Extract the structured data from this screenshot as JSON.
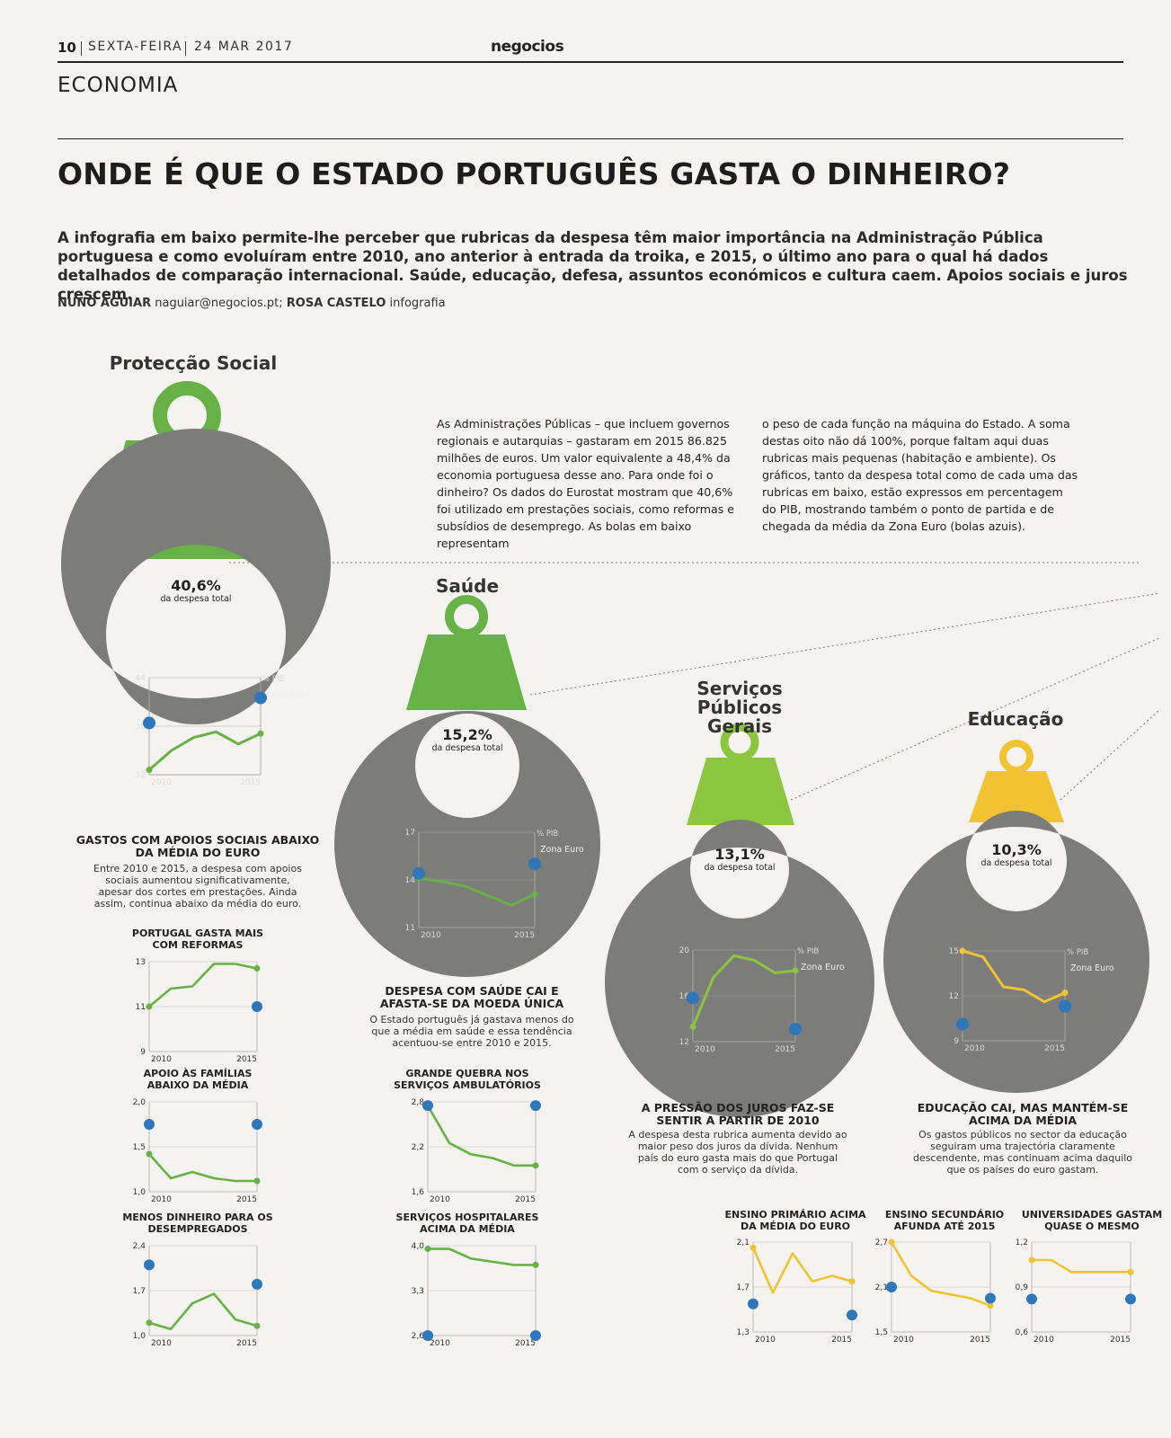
{
  "header": {
    "page_number": "10",
    "weekday": "SEXTA-FEIRA",
    "date": "24 MAR 2017",
    "brand": "negocios",
    "section": "ECONOMIA"
  },
  "article": {
    "headline": "ONDE É QUE O ESTADO PORTUGUÊS GASTA O DINHEIRO?",
    "lede": "A infografia em baixo permite-lhe perceber que rubricas da despesa têm maior importância na Administração Pública portuguesa e como evoluíram entre 2010, ano anterior à entrada da troika, e 2015, o último ano para o qual há dados detalhados de comparação internacional. Saúde, educação, defesa, assuntos económicos e cultura caem. Apoios sociais e juros crescem.",
    "author_name": "NUNO AGUIAR",
    "author_email": "naguiar@negocios.pt;",
    "designer_name": "ROSA CASTELO",
    "designer_role": "infografia",
    "intro_col1": "As Administrações Públicas – que incluem governos regionais e autarquias – gastaram em 2015 86.825 milhões de euros. Um valor equivalente a 48,4% da economia portuguesa desse ano. Para onde foi o dinheiro? Os dados do Eurostat mostram que 40,6% foi utilizado em prestações sociais, como reformas e subsídios de desemprego. As bolas em baixo representam",
    "intro_col2": "o peso de cada função na máquina do Estado. A soma destas oito não dá 100%, porque faltam aqui duas rubricas mais pequenas (habitação e ambiente). Os gráficos, tanto da despesa total como de cada uma das rubricas em baixo, estão expressos em percentagem do PIB, mostrando também o ponto de partida e de chegada da média da Zona Euro (bolas azuis)."
  },
  "labels": {
    "unit": "% PIB",
    "zona_euro": "Zona Euro",
    "da_despesa_total": "da despesa total"
  },
  "categories": {
    "proteccao": {
      "name": "Protecção Social",
      "share": "40,6%",
      "color": "#68b146",
      "title": "GASTOS COM APOIOS SOCIAIS ABAIXO DA MÉDIA DO EURO",
      "text": "Entre 2010 e 2015, a despesa com apoios sociais aumentou significativamente, apesar dos cortes em prestações. Ainda assim, continua abaixo da média do euro."
    },
    "saude": {
      "name": "Saúde",
      "share": "15,2%",
      "color": "#68b146",
      "title": "DESPESA COM SAÚDE CAI E AFASTA-SE DA MOEDA ÚNICA",
      "text": "O Estado português já gastava menos do que a média em saúde e essa tendência acentuou-se entre 2010 e 2015."
    },
    "servicos": {
      "name": "Serviços Públicos Gerais",
      "share": "13,1%",
      "color": "#8cc63f",
      "title": "A PRESSÃO DOS JUROS FAZ-SE SENTIR A PARTIR DE 2010",
      "text": "A despesa desta rubrica aumenta devido ao maior peso dos juros da dívida. Nenhum país do euro gasta mais do que Portugal com o serviço da dívida."
    },
    "educacao": {
      "name": "Educação",
      "share": "10,3%",
      "color": "#f1c232",
      "title": "EDUCAÇÃO CAI, MAS MANTÉM-SE ACIMA DA MÉDIA",
      "text": "Os gastos públicos no sector da educação seguiram uma trajectória claramente descendente, mas continuam acima daquilo que os países do euro gastam."
    }
  },
  "chart_data": [
    {
      "id": "c-prot",
      "type": "line",
      "title": "Protecção Social",
      "x": [
        2010,
        2011,
        2012,
        2013,
        2014,
        2015
      ],
      "values": [
        32.6,
        35.0,
        36.6,
        37.3,
        35.8,
        37.1
      ],
      "euro_start": 38.4,
      "euro_end": 41.5,
      "ylim": [
        32,
        44
      ],
      "yticks": [
        "44",
        "38",
        "32"
      ],
      "xticks": [
        "2010",
        "2015"
      ]
    },
    {
      "id": "c-reformas",
      "type": "line",
      "title": "PORTUGAL GASTA MAIS COM REFORMAS",
      "x": [
        2010,
        2011,
        2012,
        2013,
        2014,
        2015
      ],
      "values": [
        11.0,
        11.8,
        11.9,
        12.9,
        12.9,
        12.7
      ],
      "euro_start": null,
      "euro_end": 11.0,
      "ylim": [
        9,
        13
      ],
      "yticks": [
        "13",
        "11",
        "9"
      ],
      "xticks": [
        "2010",
        "2015"
      ]
    },
    {
      "id": "c-familias",
      "type": "line",
      "title": "APOIO ÀS FAMÍLIAS ABAIXO DA MÉDIA",
      "x": [
        2010,
        2011,
        2012,
        2013,
        2014,
        2015
      ],
      "values": [
        1.42,
        1.15,
        1.22,
        1.15,
        1.12,
        1.12
      ],
      "euro_start": 1.75,
      "euro_end": 1.75,
      "ylim": [
        1.0,
        2.0
      ],
      "yticks": [
        "2,0",
        "1,5",
        "1,0"
      ],
      "xticks": [
        "2010",
        "2015"
      ]
    },
    {
      "id": "c-desemprego",
      "type": "line",
      "title": "MENOS DINHEIRO PARA OS DESEMPREGADOS",
      "x": [
        2010,
        2011,
        2012,
        2013,
        2014,
        2015
      ],
      "values": [
        1.2,
        1.1,
        1.5,
        1.65,
        1.25,
        1.15
      ],
      "euro_start": 2.1,
      "euro_end": 1.8,
      "ylim": [
        1.0,
        2.4
      ],
      "yticks": [
        "2,4",
        "1,7",
        "1,0"
      ],
      "xticks": [
        "2010",
        "2015"
      ]
    },
    {
      "id": "c-saude",
      "type": "line",
      "title": "Saúde",
      "x": [
        2010,
        2011,
        2012,
        2013,
        2014,
        2015
      ],
      "values": [
        14.1,
        13.9,
        13.6,
        13.0,
        12.4,
        13.1
      ],
      "euro_start": 14.4,
      "euro_end": 15.0,
      "ylim": [
        11,
        17
      ],
      "yticks": [
        "17",
        "14",
        "11"
      ],
      "xticks": [
        "2010",
        "2015"
      ]
    },
    {
      "id": "c-ambulatorios",
      "type": "line",
      "title": "GRANDE QUEBRA NOS SERVIÇOS AMBULATÓRIOS",
      "x": [
        2010,
        2011,
        2012,
        2013,
        2014,
        2015
      ],
      "values": [
        2.75,
        2.25,
        2.1,
        2.05,
        1.95,
        1.95
      ],
      "euro_start": 2.75,
      "euro_end": 2.75,
      "ylim": [
        1.6,
        2.8
      ],
      "yticks": [
        "2,8",
        "2,2",
        "1,6"
      ],
      "xticks": [
        "2010",
        "2015"
      ]
    },
    {
      "id": "c-hospitalares",
      "type": "line",
      "title": "SERVIÇOS HOSPITALARES ACIMA DA MÉDIA",
      "x": [
        2010,
        2011,
        2012,
        2013,
        2014,
        2015
      ],
      "values": [
        3.95,
        3.95,
        3.8,
        3.75,
        3.7,
        3.7
      ],
      "euro_start": 2.6,
      "euro_end": 2.6,
      "ylim": [
        2.6,
        4.0
      ],
      "yticks": [
        "4,0",
        "3,3",
        "2,6"
      ],
      "xticks": [
        "2010",
        "2015"
      ]
    },
    {
      "id": "c-servicos",
      "type": "line",
      "title": "Serviços Públicos Gerais",
      "x": [
        2010,
        2011,
        2012,
        2013,
        2014,
        2015
      ],
      "values": [
        13.3,
        17.6,
        19.5,
        19.1,
        18.0,
        18.2
      ],
      "euro_start": 15.8,
      "euro_end": 13.1,
      "ylim": [
        12,
        20
      ],
      "yticks": [
        "20",
        "16",
        "12"
      ],
      "xticks": [
        "2010",
        "2015"
      ]
    },
    {
      "id": "c-educacao",
      "type": "line",
      "title": "Educação",
      "x": [
        2010,
        2011,
        2012,
        2013,
        2014,
        2015
      ],
      "values": [
        15.0,
        14.6,
        12.6,
        12.4,
        11.6,
        12.2
      ],
      "euro_start": 10.1,
      "euro_end": 11.3,
      "ylim": [
        9,
        15
      ],
      "yticks": [
        "15",
        "12",
        "9"
      ],
      "xticks": [
        "2010",
        "2015"
      ]
    },
    {
      "id": "c-primario",
      "type": "line",
      "title": "ENSINO PRIMÁRIO ACIMA DA MÉDIA DO EURO",
      "x": [
        2010,
        2011,
        2012,
        2013,
        2014,
        2015
      ],
      "values": [
        2.05,
        1.65,
        2.0,
        1.75,
        1.8,
        1.75
      ],
      "euro_start": 1.55,
      "euro_end": 1.45,
      "ylim": [
        1.3,
        2.1
      ],
      "yticks": [
        "2,1",
        "1,7",
        "1,3"
      ],
      "xticks": [
        "2010",
        "2015"
      ]
    },
    {
      "id": "c-secundario",
      "type": "line",
      "title": "ENSINO SECUNDÁRIO AFUNDA ATÉ 2015",
      "x": [
        2010,
        2011,
        2012,
        2013,
        2014,
        2015
      ],
      "values": [
        2.7,
        2.25,
        2.05,
        2.0,
        1.95,
        1.85
      ],
      "euro_start": 2.1,
      "euro_end": 1.95,
      "ylim": [
        1.5,
        2.7
      ],
      "yticks": [
        "2,7",
        "2,1",
        "1,5"
      ],
      "xticks": [
        "2010",
        "2015"
      ]
    },
    {
      "id": "c-universidades",
      "type": "line",
      "title": "UNIVERSIDADES GASTAM QUASE O MESMO",
      "x": [
        2010,
        2011,
        2012,
        2013,
        2014,
        2015
      ],
      "values": [
        1.08,
        1.08,
        1.0,
        1.0,
        1.0,
        1.0
      ],
      "euro_start": 0.82,
      "euro_end": 0.82,
      "ylim": [
        0.6,
        1.2
      ],
      "yticks": [
        "1,2",
        "0,9",
        "0,6"
      ],
      "xticks": [
        "2010",
        "2015"
      ]
    }
  ]
}
